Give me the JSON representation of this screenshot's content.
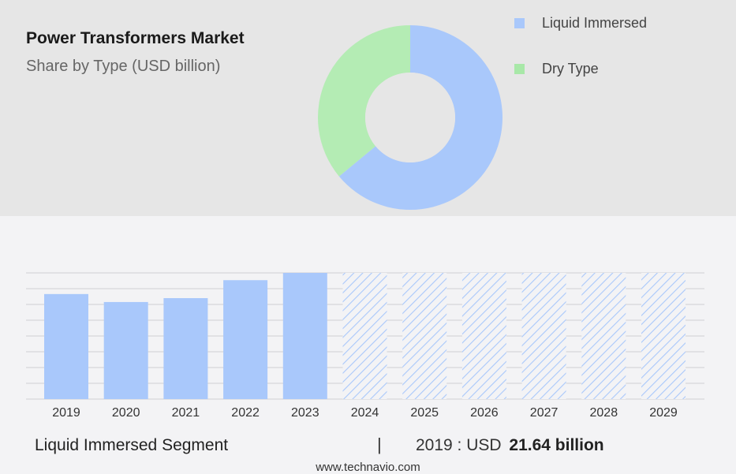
{
  "header": {
    "title": "Power Transformers Market",
    "subtitle": "Share by Type (USD billion)"
  },
  "legend": [
    {
      "label": "Liquid Immersed",
      "color": "#a9c8fb"
    },
    {
      "label": "Dry Type",
      "color": "#a8e8a8"
    }
  ],
  "chart_data": [
    {
      "type": "pie",
      "style": "donut",
      "slices": [
        {
          "name": "Liquid Immersed",
          "value": 64,
          "color": "#a9c8fb"
        },
        {
          "name": "Dry Type",
          "value": 36,
          "color": "#b4ecb4"
        }
      ]
    },
    {
      "type": "bar",
      "categories": [
        "2019",
        "2020",
        "2021",
        "2022",
        "2023",
        "2024",
        "2025",
        "2026",
        "2027",
        "2028",
        "2029"
      ],
      "values": [
        21.64,
        20.0,
        20.8,
        24.5,
        26.0,
        26.0,
        26.0,
        26.0,
        26.0,
        26.0,
        26.0
      ],
      "forecast_from": "2024",
      "grid": true,
      "color": "#a9c8fb"
    }
  ],
  "footer": {
    "segment": "Liquid Immersed Segment",
    "separator": "|",
    "value_prefix": "2019 : USD",
    "value_amount": "21.64 billion"
  },
  "source": "www.technavio.com"
}
